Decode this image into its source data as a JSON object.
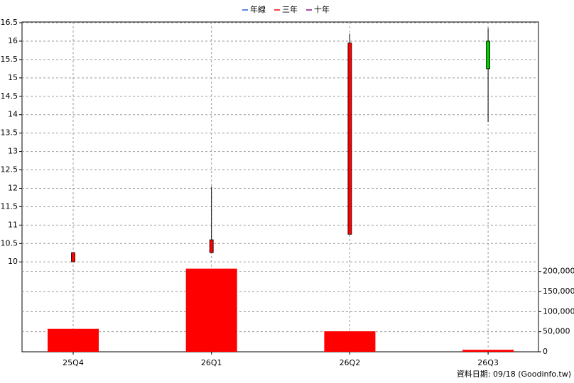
{
  "chart_data": {
    "type": "candlestick",
    "legend": [
      {
        "name": "年線",
        "color": "#1f5fd6"
      },
      {
        "name": "三年",
        "color": "#ff0000"
      },
      {
        "name": "十年",
        "color": "#8b0a8b"
      }
    ],
    "categories": [
      "25Q4",
      "26Q1",
      "26Q2",
      "26Q3"
    ],
    "open": [
      10.0,
      10.25,
      10.75,
      16.0
    ],
    "high": [
      10.25,
      12.05,
      16.2,
      16.35
    ],
    "low": [
      10.0,
      10.25,
      10.75,
      13.8
    ],
    "close": [
      10.25,
      10.6,
      15.95,
      15.25
    ],
    "up_color": "#ff0000",
    "down_color": "#00cc00",
    "volume": [
      57000,
      207000,
      51000,
      5000
    ],
    "volume_color": "#ff0000",
    "ylim": [
      9.85,
      16.52
    ],
    "yticks": [
      10,
      10.5,
      11,
      11.5,
      12,
      12.5,
      13,
      13.5,
      14,
      14.5,
      15,
      15.5,
      16,
      16.5
    ],
    "y2lim": [
      0,
      210000
    ],
    "y2ticks": [
      0,
      {
        "value": 50000,
        "label": "50,000"
      },
      {
        "value": 100000,
        "label": "100,000"
      },
      {
        "value": 150000,
        "label": "150,000"
      },
      {
        "value": 200000,
        "label": "200,000"
      }
    ],
    "grid": true,
    "footer": "資料日期: 09/18  (Goodinfo.tw)"
  }
}
